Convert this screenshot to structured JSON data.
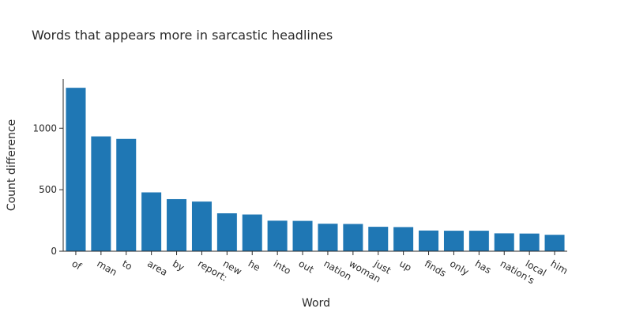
{
  "chart_data": {
    "type": "bar",
    "title": "Words that appears more in sarcastic headlines",
    "xlabel": "Word",
    "ylabel": "Count difference",
    "categories": [
      "of",
      "man",
      "to",
      "area",
      "by",
      "report:",
      "new",
      "he",
      "into",
      "out",
      "nation",
      "woman",
      "just",
      "up",
      "finds",
      "only",
      "has",
      "nation's",
      "local",
      "him"
    ],
    "values": [
      1330,
      935,
      915,
      480,
      425,
      405,
      310,
      300,
      250,
      248,
      225,
      223,
      200,
      198,
      170,
      168,
      168,
      147,
      145,
      135
    ],
    "ylim": [
      0,
      1400
    ],
    "yticks": [
      0,
      500,
      1000
    ],
    "ytick_labels": [
      "0",
      "500",
      "1000"
    ],
    "grid": false,
    "bar_color": "#1f77b4"
  }
}
